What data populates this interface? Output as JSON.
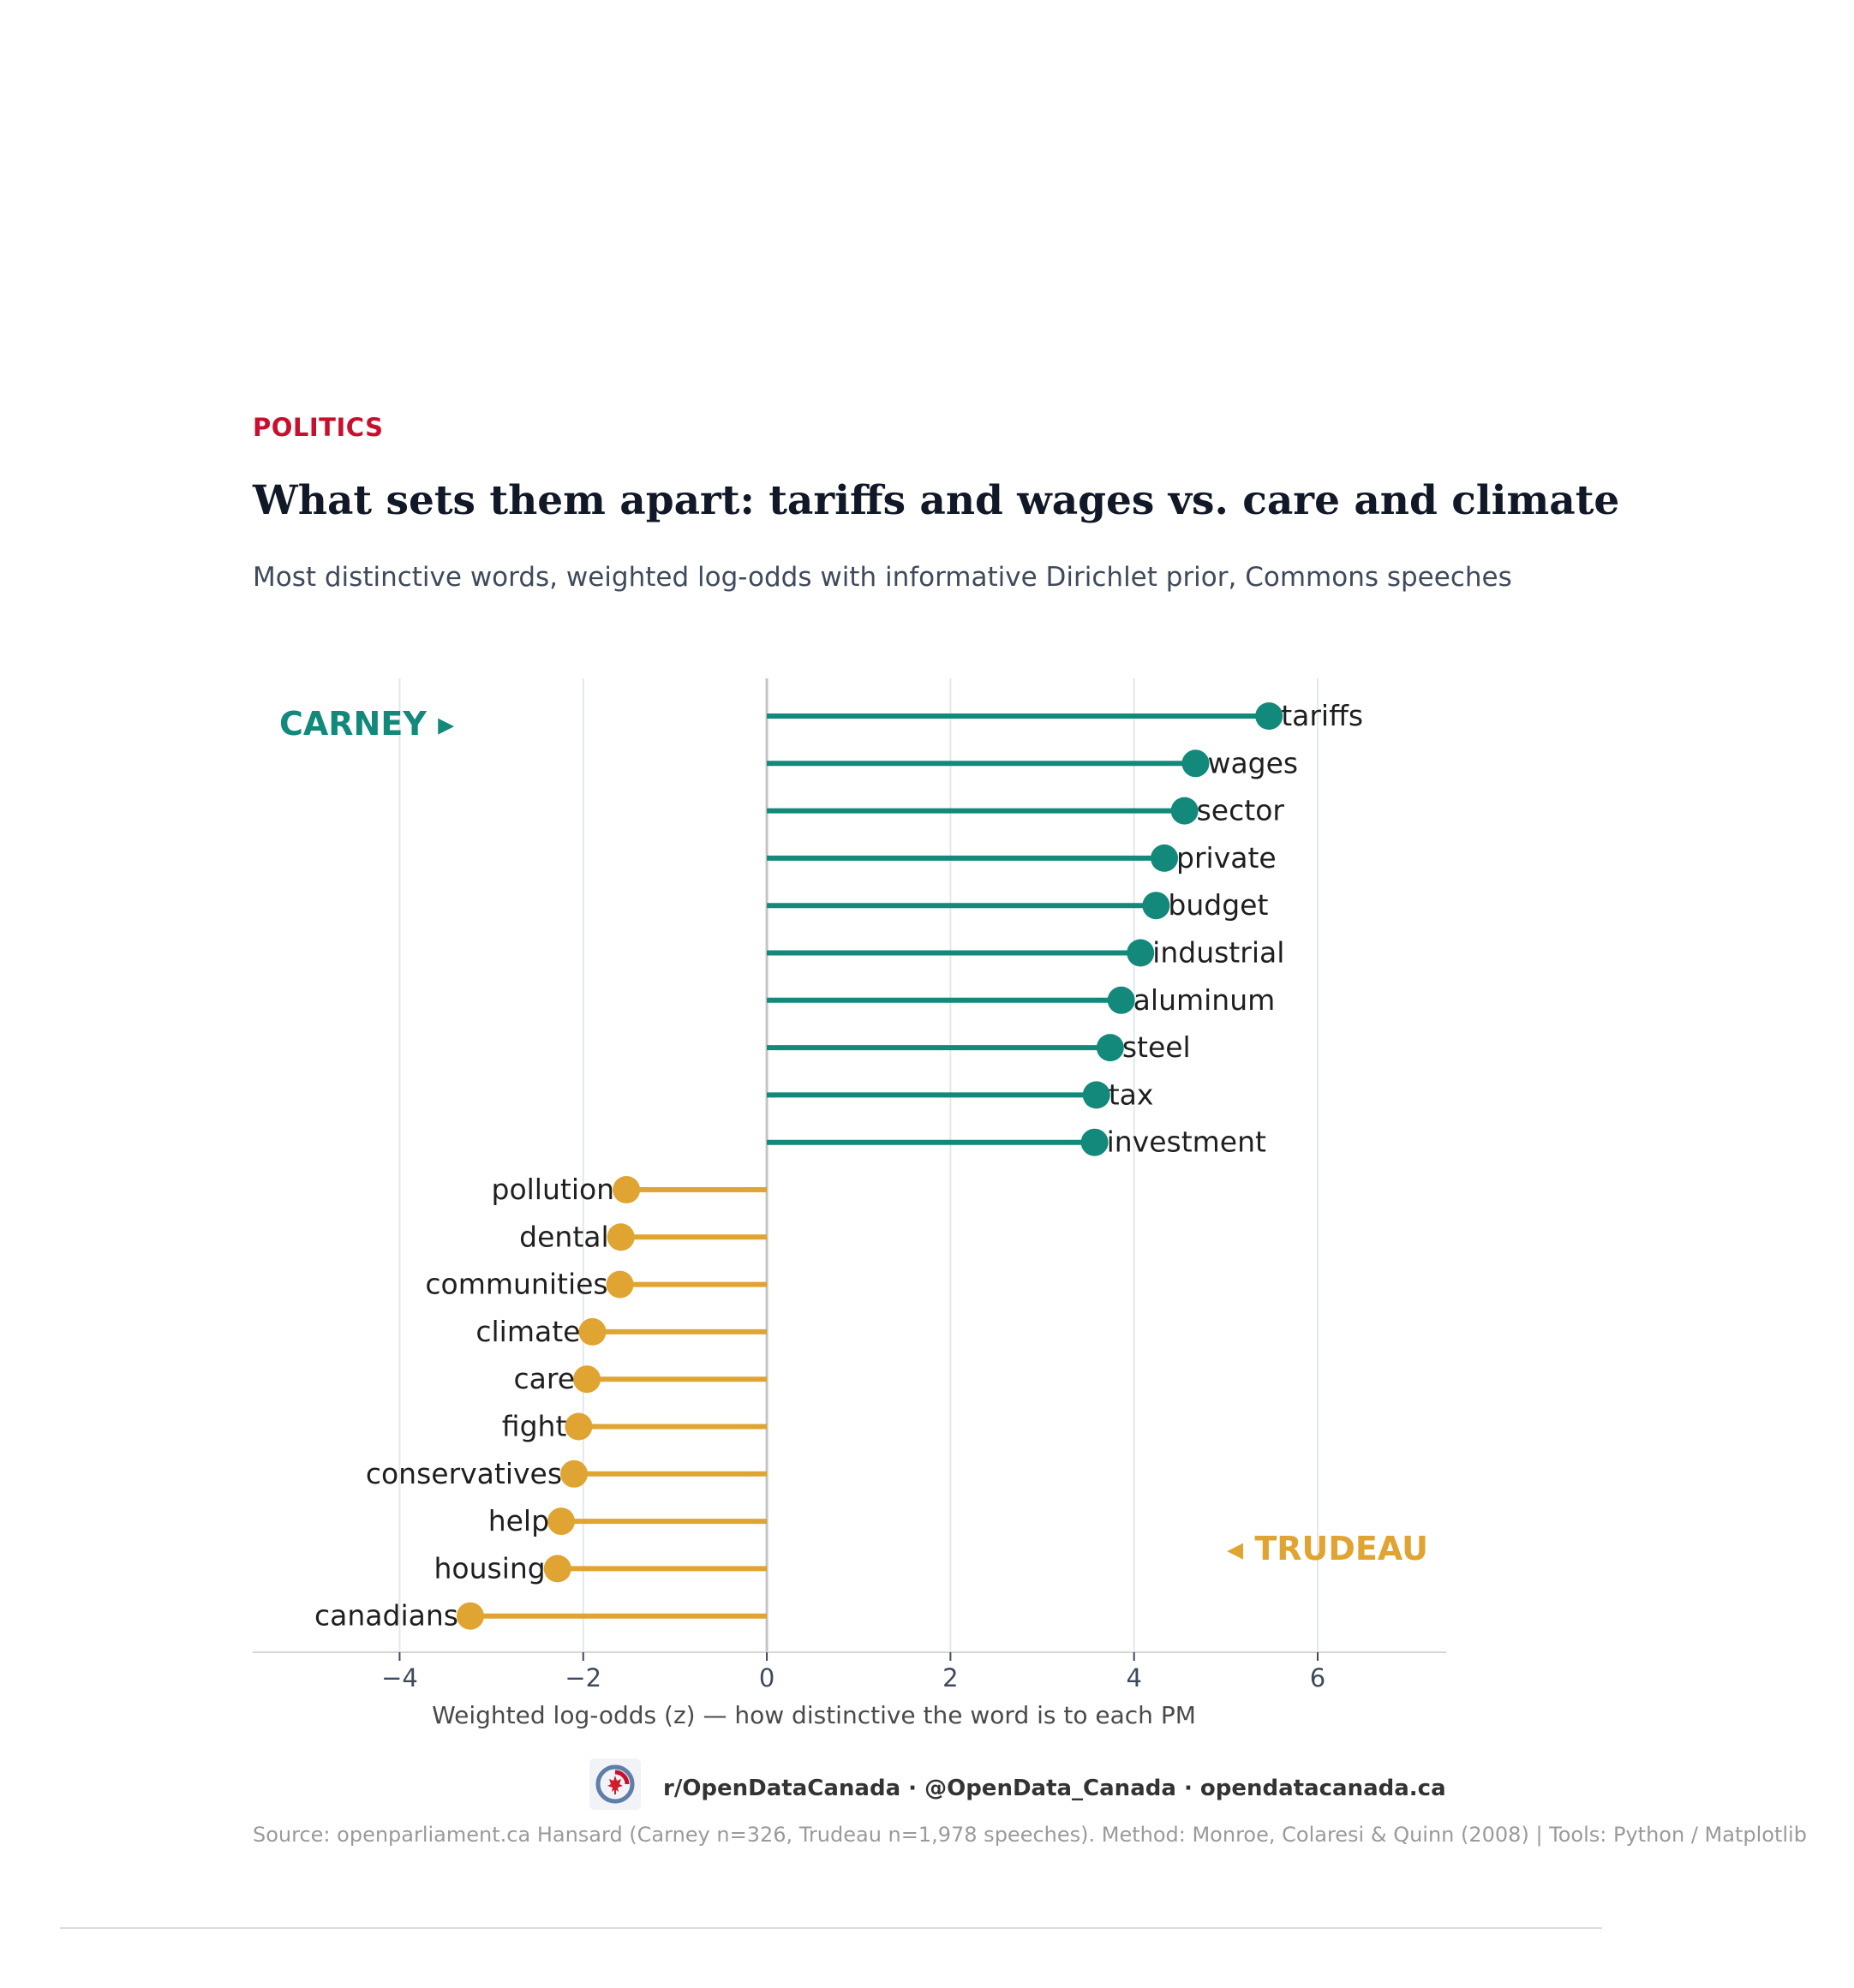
{
  "header": {
    "kicker": "POLITICS",
    "title": "What sets them apart: tariffs and wages vs. care and climate",
    "subtitle": "Most distinctive words, weighted log-odds with informative Dirichlet prior, Commons speeches"
  },
  "chart_data": {
    "type": "lollipop",
    "xlabel": "Weighted log-odds (z)  —  how distinctive the word is to each PM",
    "xlim": [
      -5.6,
      7.4
    ],
    "xticks": [
      -4,
      -2,
      0,
      2,
      4,
      6
    ],
    "xtick_labels": [
      "−4",
      "−2",
      "0",
      "2",
      "4",
      "6"
    ],
    "grid": "vertical",
    "series": [
      {
        "name": "CARNEY ▸",
        "color": "#12897a",
        "label_position": "top-left",
        "points": [
          {
            "word": "tariffs",
            "value": 5.47
          },
          {
            "word": "wages",
            "value": 4.67
          },
          {
            "word": "sector",
            "value": 4.55
          },
          {
            "word": "private",
            "value": 4.33
          },
          {
            "word": "budget",
            "value": 4.24
          },
          {
            "word": "industrial",
            "value": 4.07
          },
          {
            "word": "aluminum",
            "value": 3.86
          },
          {
            "word": "steel",
            "value": 3.74
          },
          {
            "word": "tax",
            "value": 3.59
          },
          {
            "word": "investment",
            "value": 3.57
          }
        ]
      },
      {
        "name": "◂ TRUDEAU",
        "color": "#e0a432",
        "label_position": "bottom-right",
        "points": [
          {
            "word": "pollution",
            "value": -1.53
          },
          {
            "word": "dental",
            "value": -1.59
          },
          {
            "word": "communities",
            "value": -1.6
          },
          {
            "word": "climate",
            "value": -1.9
          },
          {
            "word": "care",
            "value": -1.96
          },
          {
            "word": "fight",
            "value": -2.05
          },
          {
            "word": "conservatives",
            "value": -2.1
          },
          {
            "word": "help",
            "value": -2.24
          },
          {
            "word": "housing",
            "value": -2.28
          },
          {
            "word": "canadians",
            "value": -3.23
          }
        ]
      }
    ]
  },
  "footer": {
    "logo_icon": "maple-leaf-logo-icon",
    "links": "r/OpenDataCanada  ·  @OpenData_Canada  ·  opendatacanada.ca",
    "source": "Source: openparliament.ca Hansard (Carney n=326, Trudeau n=1,978 speeches). Method: Monroe, Colaresi & Quinn (2008)  |  Tools: Python / Matplotlib"
  }
}
